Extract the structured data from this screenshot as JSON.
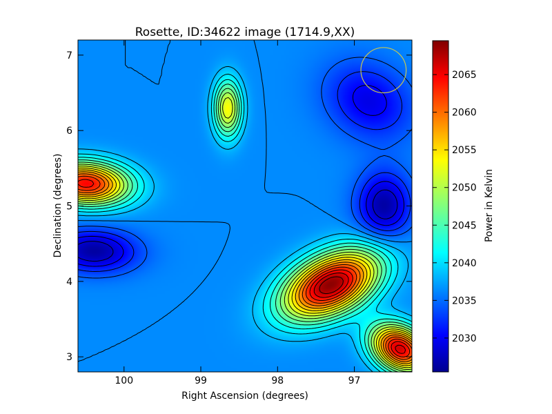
{
  "chart_data": {
    "type": "heatmap",
    "title": "Rosette, ID:34622 image (1714.9,XX)",
    "xlabel": "Right Ascension (degrees)",
    "ylabel": "Declination (degrees)",
    "xlim": [
      100.6,
      96.25
    ],
    "ylim": [
      2.8,
      7.2
    ],
    "x_ticks": [
      100,
      99,
      98,
      97
    ],
    "y_ticks": [
      3,
      4,
      5,
      6,
      7
    ],
    "x_tick_labels": [
      "100",
      "99",
      "98",
      "97"
    ],
    "y_tick_labels": [
      "3",
      "4",
      "5",
      "6",
      "7"
    ],
    "colorbar": {
      "label": "Power in Kelvin",
      "range": [
        2025.5,
        2069.5
      ],
      "ticks": [
        2030,
        2035,
        2040,
        2045,
        2050,
        2055,
        2060,
        2065
      ],
      "tick_labels": [
        "2030",
        "2035",
        "2040",
        "2045",
        "2050",
        "2055",
        "2060",
        "2065"
      ],
      "colormap": "jet"
    },
    "background_level": 2037,
    "features": [
      {
        "kind": "maximum",
        "x": 97.3,
        "y": 3.95,
        "value": 2069
      },
      {
        "kind": "maximum",
        "x": 100.5,
        "y": 5.3,
        "value": 2064
      },
      {
        "kind": "maximum",
        "x": 96.4,
        "y": 3.1,
        "value": 2066
      },
      {
        "kind": "maximum",
        "x": 98.65,
        "y": 6.3,
        "value": 2053
      },
      {
        "kind": "minimum",
        "x": 100.4,
        "y": 4.4,
        "value": 2027
      },
      {
        "kind": "minimum",
        "x": 96.6,
        "y": 5.0,
        "value": 2027
      },
      {
        "kind": "minimum",
        "x": 96.8,
        "y": 6.4,
        "value": 2030
      }
    ],
    "beam_circle": {
      "x": 96.62,
      "y": 6.8,
      "radius_deg": 0.3,
      "color": "#c8c850"
    },
    "contour_color": "#000000",
    "grid": false
  }
}
